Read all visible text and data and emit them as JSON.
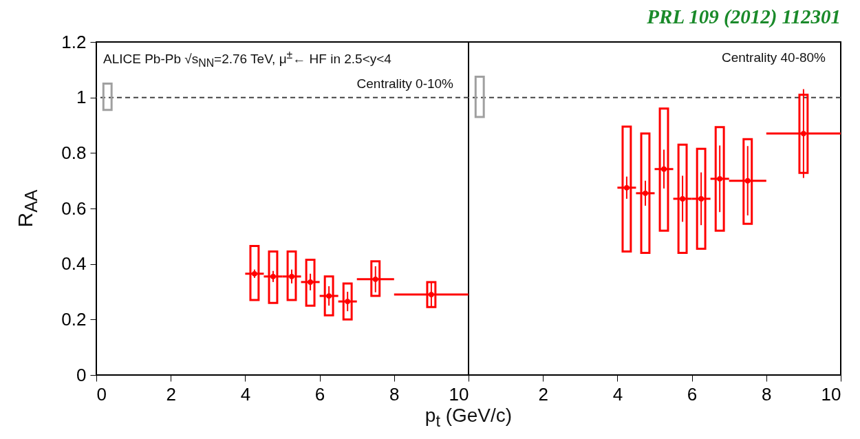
{
  "chart_data": [
    {
      "type": "scatter",
      "xlabel": "p$_{t}$ (GeV/c)",
      "ylabel": "R$_{AA}$",
      "xlim": [
        0,
        10
      ],
      "ylim": [
        0,
        1.2
      ],
      "xticks": [
        0,
        2,
        4,
        6,
        8,
        10
      ],
      "yticks": [
        0,
        0.2,
        0.4,
        0.6,
        0.8,
        1,
        1.2
      ],
      "grid": false,
      "marker": "circle",
      "annotations": [
        "ALICE Pb-Pb √s$_{NN}$=2.76 TeV, μ$^{±}$← HF in 2.5<y<4",
        "Centrality 0-10%"
      ],
      "ref_lines": [
        {
          "axis": "y",
          "value": 1,
          "color": "#444444",
          "line_style": "dashed"
        }
      ],
      "series": [
        {
          "type": "bar",
          "color": "#a0a0a0",
          "x": [
            0.3
          ],
          "base": [
            0.955
          ],
          "values": [
            0.095
          ]
        },
        {
          "type": "bar",
          "color": "#ff0000",
          "x": [
            4.25,
            4.75,
            5.25,
            5.75,
            6.25,
            6.75,
            7.5,
            9
          ],
          "base": [
            0.27,
            0.26,
            0.27,
            0.25,
            0.215,
            0.2,
            0.285,
            0.245
          ],
          "values": [
            0.195,
            0.185,
            0.175,
            0.165,
            0.14,
            0.13,
            0.125,
            0.09
          ]
        },
        {
          "color": "#ff0000",
          "x": [
            4.25,
            4.75,
            5.25,
            5.75,
            6.25,
            6.75,
            7.5,
            9
          ],
          "values": [
            0.365,
            0.355,
            0.355,
            0.335,
            0.285,
            0.265,
            0.345,
            0.29
          ],
          "errors": [
            0.015,
            0.02,
            0.025,
            0.03,
            0.035,
            0.035,
            0.047,
            0.045
          ],
          "xerrors": [
            0.25,
            0.25,
            0.25,
            0.25,
            0.25,
            0.25,
            0.5,
            1
          ]
        }
      ]
    },
    {
      "type": "scatter",
      "xlim": [
        0,
        10
      ],
      "ylim": [
        0,
        1.2
      ],
      "xticks": [
        {
          "value": 0,
          "label": null
        },
        2,
        4,
        6,
        8,
        10
      ],
      "yticks": [
        0,
        0.2,
        0.4,
        0.6,
        0.8,
        1,
        1.2
      ],
      "tick_labels": "x",
      "grid": false,
      "marker": "circle",
      "annotations": [
        "Centrality 40-80%",
        "PRL 109 (2012) 112301"
      ],
      "ref_lines": [
        {
          "axis": "y",
          "value": 1,
          "color": "#444444",
          "line_style": "dashed"
        }
      ],
      "series": [
        {
          "type": "bar",
          "color": "#a0a0a0",
          "x": [
            0.3
          ],
          "base": [
            0.93
          ],
          "values": [
            0.145
          ]
        },
        {
          "type": "bar",
          "color": "#ff0000",
          "x": [
            4.25,
            4.75,
            5.25,
            5.75,
            6.25,
            6.75,
            7.5,
            9
          ],
          "base": [
            0.445,
            0.44,
            0.52,
            0.44,
            0.455,
            0.52,
            0.545,
            0.728
          ],
          "values": [
            0.45,
            0.43,
            0.44,
            0.39,
            0.36,
            0.373,
            0.305,
            0.282
          ]
        },
        {
          "color": "#ff0000",
          "x": [
            4.25,
            4.75,
            5.25,
            5.75,
            6.25,
            6.75,
            7.5,
            9
          ],
          "values": [
            0.675,
            0.655,
            0.742,
            0.635,
            0.635,
            0.707,
            0.7,
            0.87
          ],
          "errors": [
            0.04,
            0.045,
            0.07,
            0.083,
            0.095,
            0.12,
            0.125,
            0.16
          ],
          "xerrors": [
            0.25,
            0.25,
            0.25,
            0.25,
            0.25,
            0.25,
            0.5,
            1
          ]
        }
      ]
    }
  ]
}
